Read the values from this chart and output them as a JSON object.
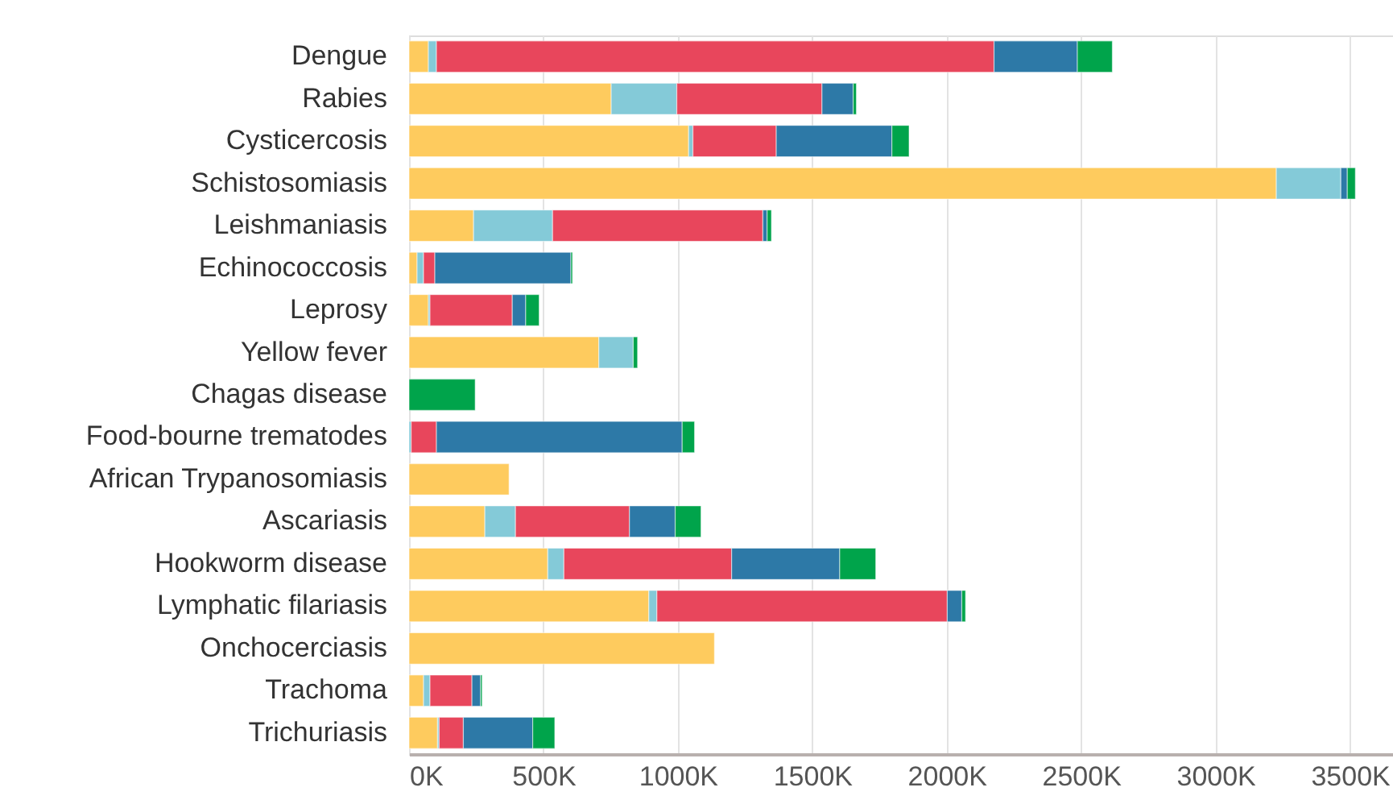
{
  "chart_data": {
    "type": "bar",
    "orientation": "horizontal",
    "stacked": true,
    "categories": [
      "Dengue",
      "Rabies",
      "Cysticercosis",
      "Schistosomiasis",
      "Leishmaniasis",
      "Echinococcosis",
      "Leprosy",
      "Yellow fever",
      "Chagas disease",
      "Food-bourne trematodes",
      "African Trypanosomiasis",
      "Ascariasis",
      "Hookworm disease",
      "Lymphatic filariasis",
      "Onchocerciasis",
      "Trachoma",
      "Trichuriasis"
    ],
    "series": [
      {
        "color": "#fecb5e",
        "values": [
          72,
          752,
          1040,
          3226,
          240,
          30,
          72,
          706,
          null,
          null,
          372,
          282,
          516,
          892,
          1136,
          54,
          106
        ]
      },
      {
        "color": "#84cad8",
        "values": [
          30,
          244,
          16,
          240,
          294,
          24,
          6,
          128,
          null,
          8,
          null,
          114,
          60,
          30,
          null,
          24,
          6
        ]
      },
      {
        "color": "#e8465c",
        "values": [
          2074,
          540,
          310,
          null,
          782,
          42,
          306,
          null,
          null,
          94,
          null,
          424,
          624,
          1080,
          null,
          156,
          90
        ]
      },
      {
        "color": "#2d79a7",
        "values": [
          310,
          116,
          430,
          24,
          16,
          506,
          50,
          null,
          null,
          914,
          null,
          170,
          402,
          54,
          null,
          32,
          258
        ]
      },
      {
        "color": "#00a44b",
        "values": [
          130,
          12,
          64,
          30,
          16,
          6,
          50,
          16,
          246,
          46,
          null,
          96,
          134,
          14,
          null,
          6,
          82
        ]
      }
    ],
    "xlim": [
      0,
      3660
    ],
    "xticks": [
      {
        "value": 0,
        "label": "0K"
      },
      {
        "value": 500,
        "label": "500K"
      },
      {
        "value": 1000,
        "label": "1000K"
      },
      {
        "value": 1500,
        "label": "1500K"
      },
      {
        "value": 2000,
        "label": "2000K"
      },
      {
        "value": 2500,
        "label": "2500K"
      },
      {
        "value": 3000,
        "label": "3000K"
      },
      {
        "value": 3500,
        "label": "3500K"
      }
    ],
    "grid": "x",
    "legend": false
  }
}
